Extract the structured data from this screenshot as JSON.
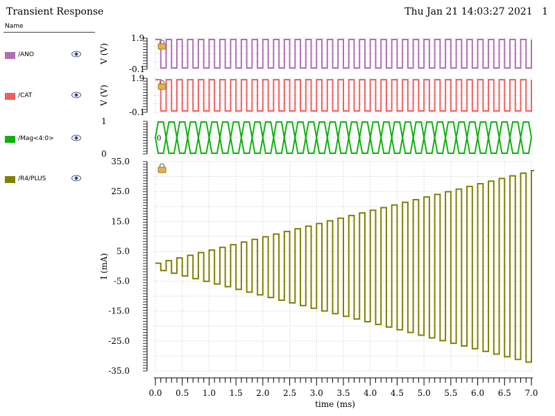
{
  "window": {
    "title": "Transient Response",
    "datetime": "Thu Jan 21 14:03:27 2021",
    "page_number": "1"
  },
  "legend": {
    "header": "Name",
    "items": [
      {
        "label": "/ANO",
        "color": "#b070b0",
        "icon": "eye-icon"
      },
      {
        "label": "/CAT",
        "color": "#f06060",
        "icon": "eye-icon"
      },
      {
        "label": "/Mag<4:0>",
        "color": "#10b010",
        "icon": "eye-icon"
      },
      {
        "label": "/R4/PLUS",
        "color": "#808000",
        "icon": "eye-icon"
      }
    ]
  },
  "chart_data": [
    {
      "type": "line",
      "series": [
        {
          "name": "/ANO",
          "color": "#b070b0"
        }
      ],
      "ylabel": "V (V)",
      "ylim": [
        -0.1,
        1.9
      ],
      "yticks": [
        "1.9",
        "-0.1"
      ],
      "waveform": {
        "kind": "square",
        "low": -0.1,
        "high": 1.9,
        "period_ms": 0.2,
        "start_ms": 0.0,
        "end_ms": 7.0
      },
      "locked": true
    },
    {
      "type": "line",
      "series": [
        {
          "name": "/CAT",
          "color": "#f06060"
        }
      ],
      "ylabel": "V (V)",
      "ylim": [
        -0.1,
        1.9
      ],
      "yticks": [
        "1.9",
        "-0.1"
      ],
      "waveform": {
        "kind": "square",
        "low": -0.1,
        "high": 1.9,
        "period_ms": 0.2,
        "start_ms": 0.0,
        "end_ms": 7.0
      },
      "locked": true
    },
    {
      "type": "line",
      "series": [
        {
          "name": "/Mag<4:0>",
          "color": "#10b010"
        }
      ],
      "ylabel": "",
      "yticks": [
        "1",
        "0"
      ],
      "bus_value": "0",
      "waveform": {
        "kind": "bus",
        "transition_period_ms": 0.2,
        "start_ms": 0.0,
        "end_ms": 7.0
      }
    },
    {
      "type": "line",
      "series": [
        {
          "name": "/R4/PLUS",
          "color": "#808000"
        }
      ],
      "ylabel": "I (mA)",
      "ylim": [
        -35.0,
        35.0
      ],
      "yticks": [
        "35.0",
        "25.0",
        "15.0",
        "5.0",
        "-5.0",
        "-15.0",
        "-25.0",
        "-35.0"
      ],
      "waveform": {
        "kind": "growing-square",
        "start_ms": 0.0,
        "end_ms": 7.0,
        "period_ms": 0.2,
        "pos_start": 1.0,
        "pos_end": 32.0,
        "neg_start": -1.0,
        "neg_end": -32.5
      },
      "locked": true
    }
  ],
  "xaxis": {
    "label": "time (ms)",
    "xlim": [
      0.0,
      7.0
    ],
    "ticks": [
      "0.0",
      "0.5",
      "1.0",
      "1.5",
      "2.0",
      "2.5",
      "3.0",
      "3.5",
      "4.0",
      "4.5",
      "5.0",
      "5.5",
      "6.0",
      "6.5",
      "7.0"
    ]
  },
  "grid": true
}
